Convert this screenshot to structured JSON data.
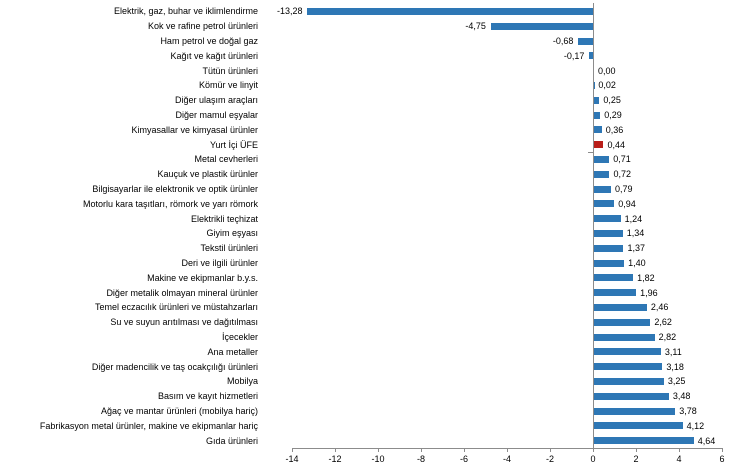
{
  "chart_data": {
    "type": "bar",
    "orientation": "horizontal",
    "title": "",
    "categories": [
      "Elektrik, gaz, buhar ve iklimlendirme",
      "Kok ve rafine petrol ürünleri",
      "Ham petrol ve doğal gaz",
      "Kağıt ve kağıt ürünleri",
      "Tütün ürünleri",
      "Kömür ve linyit",
      "Diğer ulaşım araçları",
      "Diğer mamul eşyalar",
      "Kimyasallar ve kimyasal ürünler",
      "Yurt İçi ÜFE",
      "Metal cevherleri",
      "Kauçuk ve plastik ürünler",
      "Bilgisayarlar ile elektronik ve optik ürünler",
      "Motorlu kara taşıtları, römork ve yarı römork",
      "Elektrikli teçhizat",
      "Giyim eşyası",
      "Tekstil ürünleri",
      "Deri ve ilgili ürünler",
      "Makine ve ekipmanlar b.y.s.",
      "Diğer metalik olmayan mineral ürünler",
      "Temel eczacılık ürünleri ve müstahzarları",
      "Su ve suyun arıtılması ve dağıtılması",
      "İçecekler",
      "Ana metaller",
      "Diğer madencilik ve taş ocakçılığı ürünleri",
      "Mobilya",
      "Basım ve kayıt hizmetleri",
      "Ağaç ve mantar ürünleri (mobilya hariç)",
      "Fabrikasyon metal ürünler, makine ve ekipmanlar hariç",
      "Gıda ürünleri"
    ],
    "values": [
      -13.28,
      -4.75,
      -0.68,
      -0.17,
      0.0,
      0.02,
      0.25,
      0.29,
      0.36,
      0.44,
      0.71,
      0.72,
      0.79,
      0.94,
      1.24,
      1.34,
      1.37,
      1.4,
      1.82,
      1.96,
      2.46,
      2.62,
      2.82,
      3.11,
      3.18,
      3.25,
      3.48,
      3.78,
      4.12,
      4.64
    ],
    "value_labels": [
      "-13,28",
      "-4,75",
      "-0,68",
      "-0,17",
      "0,00",
      "0,02",
      "0,25",
      "0,29",
      "0,36",
      "0,44",
      "0,71",
      "0,72",
      "0,79",
      "0,94",
      "1,24",
      "1,34",
      "1,37",
      "1,40",
      "1,82",
      "1,96",
      "2,46",
      "2,62",
      "2,82",
      "3,11",
      "3,18",
      "3,25",
      "3,48",
      "3,78",
      "4,12",
      "4,64"
    ],
    "highlight_category": "Yurt İçi ÜFE",
    "highlight_index": 9,
    "xlim": [
      -14,
      6
    ],
    "x_ticks": [
      -14,
      -12,
      -10,
      -8,
      -6,
      -4,
      -2,
      0,
      2,
      4,
      6
    ],
    "x_tick_labels": [
      "-14",
      "-12",
      "-10",
      "-8",
      "-6",
      "-4",
      "-2",
      "0",
      "2",
      "4",
      "6"
    ],
    "legend": null,
    "grid": false,
    "colors": {
      "bar": "#2E77B5",
      "highlight": "#B91E19",
      "axis": "#8C8C8C",
      "text": "#000000",
      "background": "#FFFFFF"
    }
  }
}
